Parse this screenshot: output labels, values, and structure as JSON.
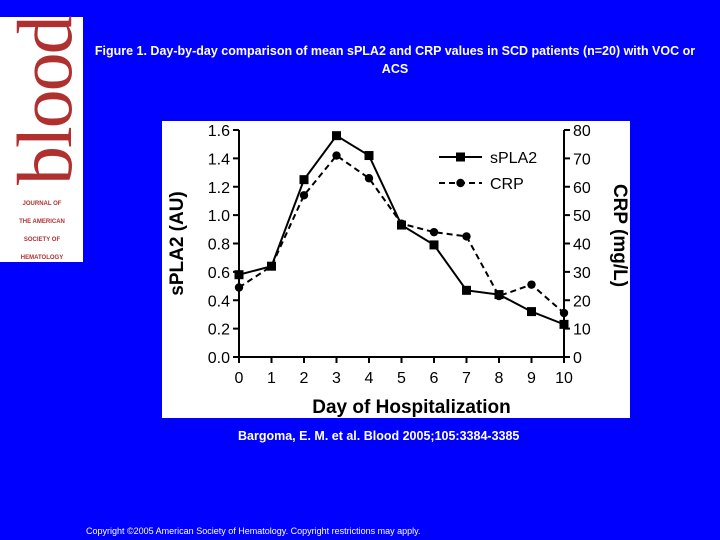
{
  "logo": {
    "word": "blood",
    "sub_lines": [
      "JOURNAL OF",
      "THE AMERICAN",
      "SOCIETY OF",
      "HEMATOLOGY"
    ]
  },
  "title": "Figure 1. Day-by-day comparison of mean sPLA2 and CRP values in SCD patients (n=20) with VOC or ACS",
  "citation": "Bargoma, E. M. et al. Blood 2005;105:3384-3385",
  "copyright": "Copyright ©2005 American Society of Hematology. Copyright restrictions may apply.",
  "chart_data": {
    "type": "line",
    "xlabel": "Day of Hospitalization",
    "ylabel_left": "sPLA2 (AU)",
    "ylabel_right": "CRP (mg/L)",
    "x": [
      0,
      1,
      2,
      3,
      4,
      5,
      6,
      7,
      8,
      9,
      10
    ],
    "x_ticks": [
      "0",
      "1",
      "2",
      "3",
      "4",
      "5",
      "6",
      "7",
      "8",
      "9",
      "10"
    ],
    "ylim_left": [
      0,
      1.6
    ],
    "ylim_right": [
      0,
      80
    ],
    "yticks_left": [
      "0.0",
      "0.2",
      "0.4",
      "0.6",
      "0.8",
      "1.0",
      "1.2",
      "1.4",
      "1.6"
    ],
    "yticks_right": [
      "0",
      "10",
      "20",
      "30",
      "40",
      "50",
      "60",
      "70",
      "80"
    ],
    "legend_position": "top-right",
    "series": [
      {
        "name": "sPLA2",
        "axis": "left",
        "marker": "square",
        "style": "solid",
        "values": [
          0.58,
          0.64,
          1.25,
          1.56,
          1.42,
          0.93,
          0.79,
          0.47,
          0.44,
          0.32,
          0.23
        ]
      },
      {
        "name": "CRP",
        "axis": "right",
        "marker": "circle",
        "style": "dashed",
        "values": [
          24.5,
          32,
          57,
          71,
          63,
          47,
          44,
          42.5,
          21.5,
          25.5,
          15.5
        ]
      }
    ]
  }
}
